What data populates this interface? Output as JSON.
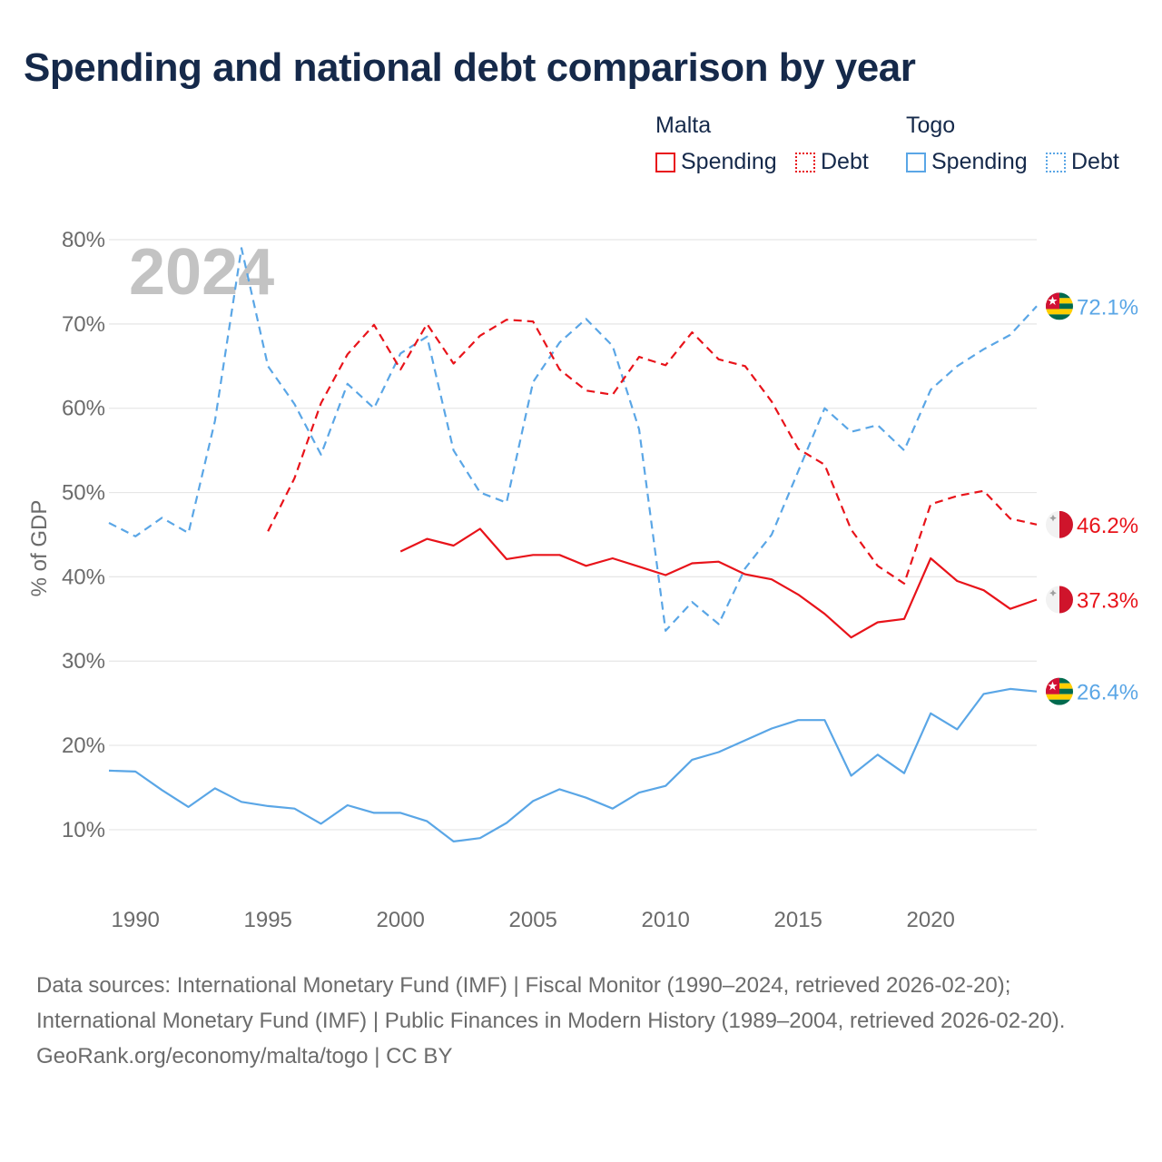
{
  "title": "Spending and national debt comparison by year",
  "legend": {
    "malta_label": "Malta",
    "togo_label": "Togo",
    "spending_label": "Spending",
    "debt_label": "Debt"
  },
  "footer": {
    "sources": "Data sources: International Monetary Fund (IMF) | Fiscal Monitor (1990–2024, retrieved 2026-02-20); International Monetary Fund (IMF) | Public Finances in Modern History (1989–2004, retrieved 2026-02-20).",
    "credit": "GeoRank.org/economy/malta/togo | CC BY"
  },
  "colors": {
    "malta": "#e8131a",
    "togo": "#5aa6e6",
    "grid": "#e6e6e6",
    "axis_text": "#6b6b6b",
    "watermark": "#c3c3c3"
  },
  "chart_data": {
    "type": "line",
    "title": "Spending and national debt comparison by year",
    "ylabel": "% of GDP",
    "xlabel": "",
    "year_watermark": "2024",
    "ylim": [
      4.5,
      80
    ],
    "xlim": [
      1989,
      2024
    ],
    "yticks": [
      10,
      20,
      30,
      40,
      50,
      60,
      70,
      80
    ],
    "ytick_labels": [
      "10%",
      "20%",
      "30%",
      "40%",
      "50%",
      "60%",
      "70%",
      "80%"
    ],
    "xticks": [
      1990,
      1995,
      2000,
      2005,
      2010,
      2015,
      2020
    ],
    "xtick_labels": [
      "1990",
      "1995",
      "2000",
      "2005",
      "2010",
      "2015",
      "2020"
    ],
    "series": [
      {
        "name": "Togo Debt",
        "country": "Togo",
        "measure": "Debt",
        "style": "dashed",
        "color": "#5aa6e6",
        "x": [
          1989,
          1990,
          1991,
          1992,
          1993,
          1994,
          1995,
          1996,
          1997,
          1998,
          1999,
          2000,
          2001,
          2002,
          2003,
          2004,
          2005,
          2006,
          2007,
          2008,
          2009,
          2010,
          2011,
          2012,
          2013,
          2014,
          2015,
          2016,
          2017,
          2018,
          2019,
          2020,
          2021,
          2022,
          2023,
          2024
        ],
        "values": [
          46.4,
          44.8,
          47.0,
          45.2,
          58.5,
          79.0,
          65.0,
          60.5,
          54.5,
          62.9,
          60.0,
          66.5,
          68.5,
          55.0,
          50.0,
          48.8,
          63.1,
          67.8,
          70.6,
          67.4,
          57.5,
          33.6,
          37.0,
          34.4,
          41.0,
          45.0,
          52.5,
          60.0,
          57.2,
          58.0,
          55.0,
          62.2,
          65.0,
          67.0,
          68.7,
          72.1
        ],
        "end_label": "72.1%"
      },
      {
        "name": "Malta Debt",
        "country": "Malta",
        "measure": "Debt",
        "style": "dashed",
        "color": "#e8131a",
        "x": [
          1995,
          1996,
          1997,
          1998,
          1999,
          2000,
          2001,
          2002,
          2003,
          2004,
          2005,
          2006,
          2007,
          2008,
          2009,
          2010,
          2011,
          2012,
          2013,
          2014,
          2015,
          2016,
          2017,
          2018,
          2019,
          2020,
          2021,
          2022,
          2023,
          2024
        ],
        "values": [
          45.4,
          51.7,
          60.6,
          66.4,
          69.9,
          64.6,
          70.0,
          65.3,
          68.6,
          70.5,
          70.3,
          64.6,
          62.1,
          61.6,
          66.1,
          65.1,
          69.0,
          65.8,
          65.0,
          60.8,
          55.2,
          53.3,
          45.6,
          41.3,
          39.2,
          48.6,
          49.6,
          50.2,
          46.9,
          46.2
        ],
        "end_label": "46.2%"
      },
      {
        "name": "Malta Spending",
        "country": "Malta",
        "measure": "Spending",
        "style": "solid",
        "color": "#e8131a",
        "x": [
          2000,
          2001,
          2002,
          2003,
          2004,
          2005,
          2006,
          2007,
          2008,
          2009,
          2010,
          2011,
          2012,
          2013,
          2014,
          2015,
          2016,
          2017,
          2018,
          2019,
          2020,
          2021,
          2022,
          2023,
          2024
        ],
        "values": [
          43.0,
          44.5,
          43.7,
          45.7,
          42.1,
          42.6,
          42.6,
          41.3,
          42.2,
          41.2,
          40.2,
          41.6,
          41.8,
          40.3,
          39.7,
          37.9,
          35.6,
          32.8,
          34.6,
          35.0,
          42.2,
          39.5,
          38.4,
          36.2,
          37.3
        ],
        "end_label": "37.3%"
      },
      {
        "name": "Togo Spending",
        "country": "Togo",
        "measure": "Spending",
        "style": "solid",
        "color": "#5aa6e6",
        "x": [
          1989,
          1990,
          1991,
          1992,
          1993,
          1994,
          1995,
          1996,
          1997,
          1998,
          1999,
          2000,
          2001,
          2002,
          2003,
          2004,
          2005,
          2006,
          2007,
          2008,
          2009,
          2010,
          2011,
          2012,
          2013,
          2014,
          2015,
          2016,
          2017,
          2018,
          2019,
          2020,
          2021,
          2022,
          2023,
          2024
        ],
        "values": [
          17.0,
          16.9,
          14.7,
          12.7,
          14.9,
          13.3,
          12.8,
          12.5,
          10.7,
          12.9,
          12.0,
          12.0,
          11.0,
          8.6,
          9.0,
          10.8,
          13.4,
          14.8,
          13.8,
          12.5,
          14.4,
          15.2,
          18.3,
          19.2,
          20.6,
          22.0,
          23.0,
          23.0,
          16.4,
          18.9,
          16.7,
          23.8,
          21.9,
          26.1,
          26.7,
          26.4
        ],
        "end_label": "26.4%"
      }
    ]
  }
}
